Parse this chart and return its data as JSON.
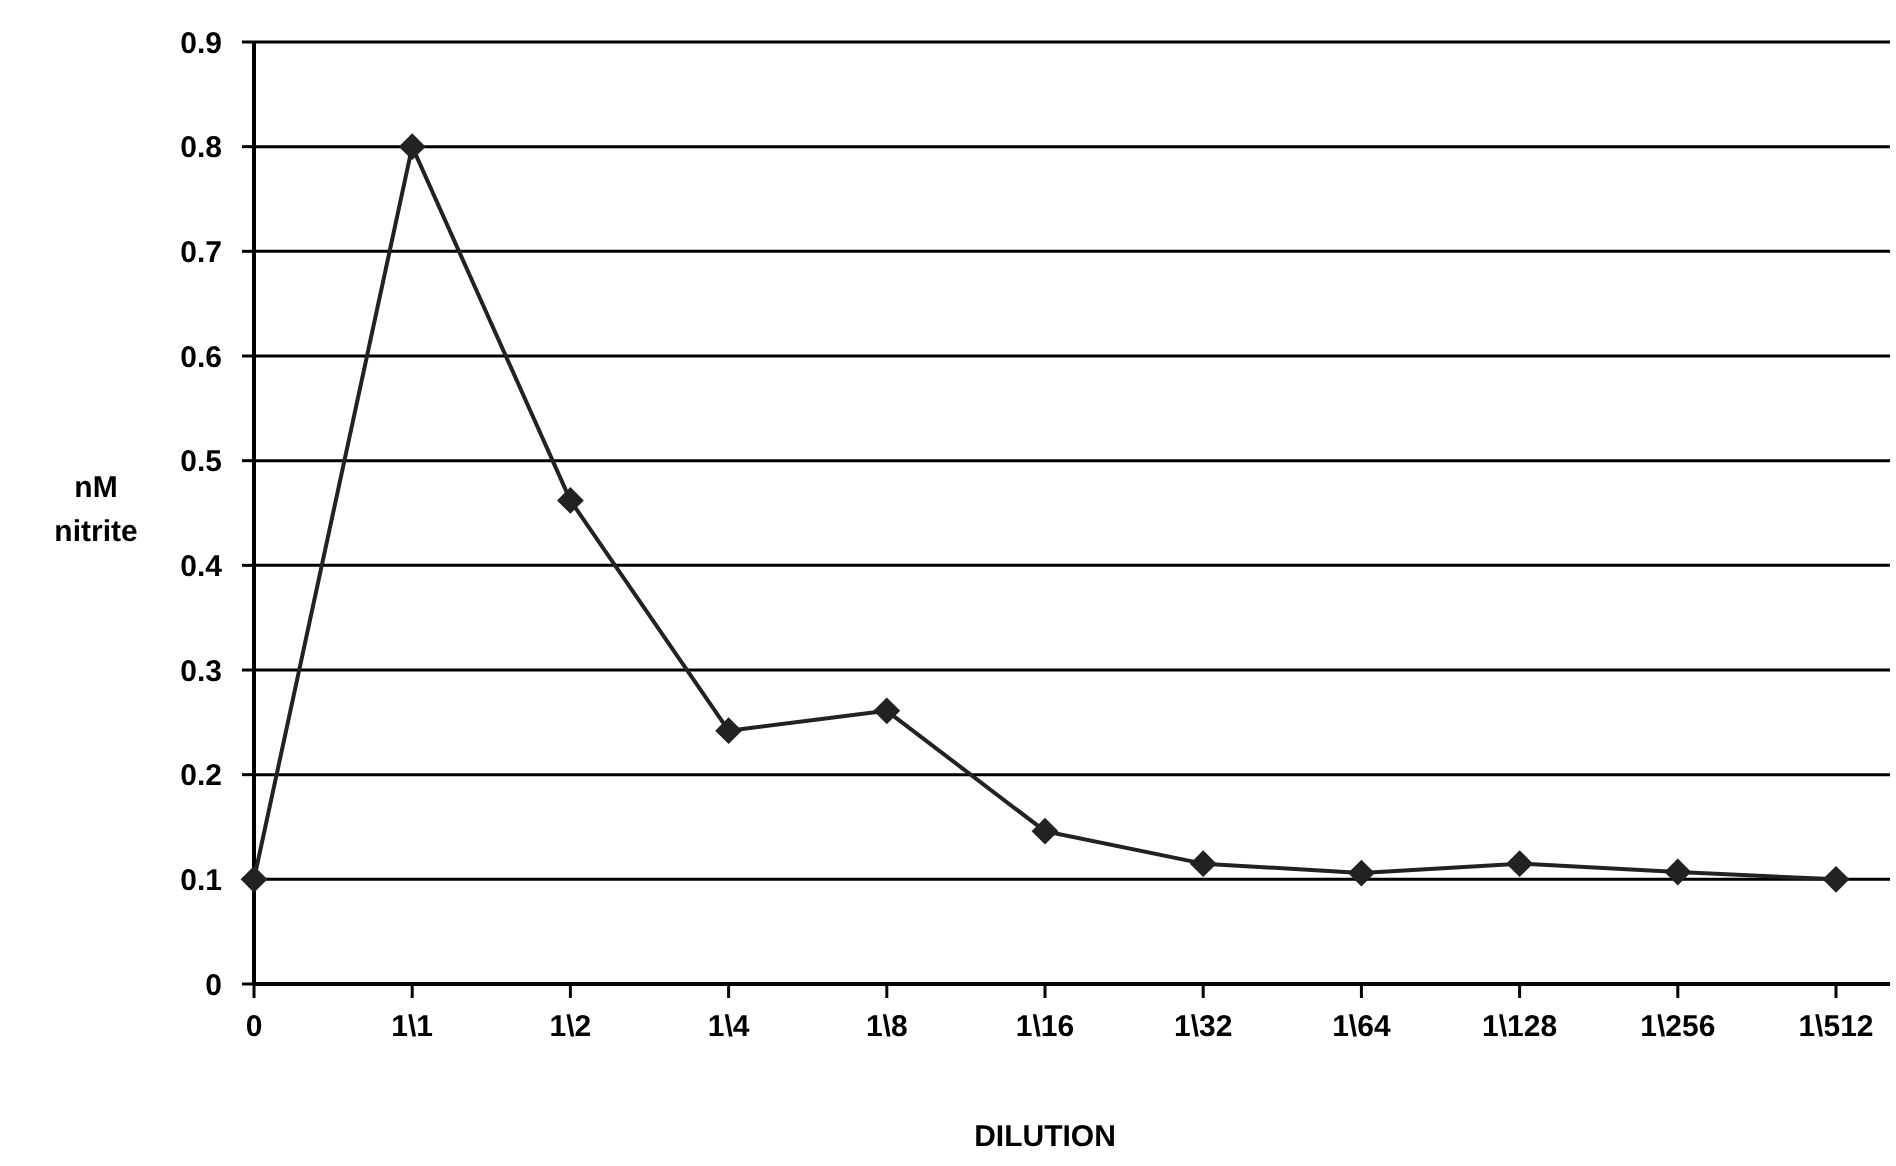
{
  "chart_data": {
    "type": "line",
    "xlabel": "DILUTION",
    "ylabel": "nM nitrite",
    "categories": [
      "0",
      "1\\1",
      "1\\2",
      "1\\4",
      "1\\8",
      "1\\16",
      "1\\32",
      "1\\64",
      "1\\128",
      "1\\256",
      "1\\512"
    ],
    "series": [
      {
        "color": "#222222",
        "values": [
          0.1,
          0.8,
          0.462,
          0.242,
          0.261,
          0.146,
          0.115,
          0.106,
          0.115,
          0.107,
          0.1
        ]
      }
    ],
    "ylim": [
      0,
      0.9
    ],
    "yticks": [
      0,
      0.1,
      0.2,
      0.3,
      0.4,
      0.5,
      0.6,
      0.7,
      0.8,
      0.9
    ],
    "grid": "y",
    "marker": "diamond",
    "line_style": "solid"
  }
}
